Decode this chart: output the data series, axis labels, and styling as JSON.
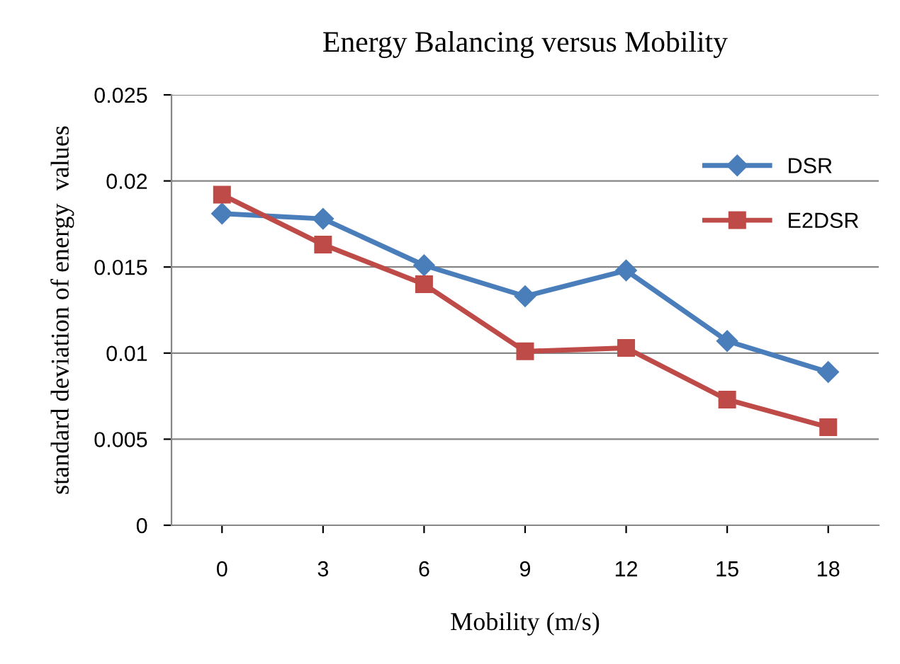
{
  "chart_data": {
    "type": "line",
    "title": "Energy Balancing versus Mobility",
    "xlabel": "Mobility (m/s)",
    "ylabel": "standard deviation of energy  values",
    "categories": [
      "0",
      "3",
      "6",
      "9",
      "12",
      "15",
      "18"
    ],
    "series": [
      {
        "name": "DSR",
        "color": "#4a7ebb",
        "marker": "diamond",
        "values": [
          0.0181,
          0.0178,
          0.0151,
          0.0133,
          0.0148,
          0.0107,
          0.0089
        ]
      },
      {
        "name": "E2DSR",
        "color": "#be4b48",
        "marker": "square",
        "values": [
          0.0192,
          0.0163,
          0.014,
          0.0101,
          0.0103,
          0.0073,
          0.0057
        ]
      }
    ],
    "ylim": [
      0,
      0.025
    ],
    "yticks": [
      0,
      {
        "value": 0.005,
        "label": "0.005"
      },
      {
        "value": 0.01,
        "label": "0.01"
      },
      {
        "value": 0.015,
        "label": "0.015"
      },
      {
        "value": 0.02,
        "label": "0.02"
      },
      {
        "value": 0.025,
        "label": "0.025"
      }
    ],
    "grid": "y",
    "legend": "top right",
    "line_style": "solid"
  }
}
